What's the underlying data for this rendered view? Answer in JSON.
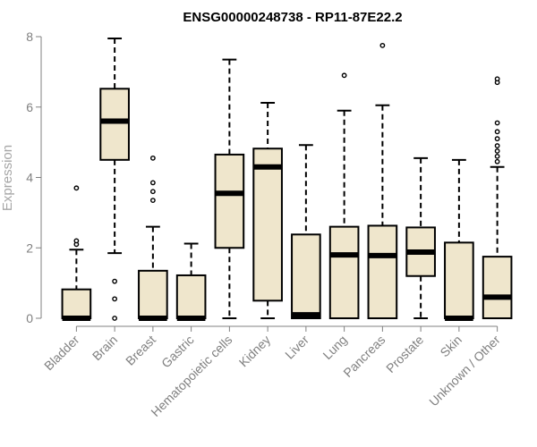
{
  "chart_data": {
    "type": "boxplot",
    "title": "ENSG00000248738 - RP11-87E22.2",
    "xlabel": "",
    "ylabel": "Expression",
    "ylim": [
      0,
      8
    ],
    "yticks": [
      0,
      2,
      4,
      6,
      8
    ],
    "grid": false,
    "legend": "none",
    "box_fill": "#efe6cc",
    "box_stroke": "#000000",
    "axis_color": "#808080",
    "categories": [
      "Bladder",
      "Brain",
      "Breast",
      "Gastric",
      "Hematopoietic cells",
      "Kidney",
      "Liver",
      "Lung",
      "Pancreas",
      "Prostate",
      "Skin",
      "Unknown / Other"
    ],
    "boxes": [
      {
        "category": "Bladder",
        "min": 0,
        "q1": 0,
        "median": 0,
        "q3": 0.82,
        "max": 1.95,
        "outliers": [
          2.1,
          2.2,
          3.7
        ]
      },
      {
        "category": "Brain",
        "min": 1.85,
        "q1": 4.5,
        "median": 5.6,
        "q3": 6.52,
        "max": 7.95,
        "outliers": [
          0,
          0.55,
          1.05
        ]
      },
      {
        "category": "Breast",
        "min": 0,
        "q1": 0,
        "median": 0,
        "q3": 1.35,
        "max": 2.6,
        "outliers": [
          3.35,
          3.6,
          3.85,
          4.55
        ]
      },
      {
        "category": "Gastric",
        "min": 0,
        "q1": 0,
        "median": 0,
        "q3": 1.22,
        "max": 2.12,
        "outliers": []
      },
      {
        "category": "Hematopoietic cells",
        "min": 0,
        "q1": 2.0,
        "median": 3.55,
        "q3": 4.65,
        "max": 7.35,
        "outliers": []
      },
      {
        "category": "Kidney",
        "min": 0,
        "q1": 0.5,
        "median": 4.3,
        "q3": 4.82,
        "max": 6.12,
        "outliers": []
      },
      {
        "category": "Liver",
        "min": 0,
        "q1": 0,
        "median": 0.1,
        "q3": 2.38,
        "max": 4.92,
        "outliers": []
      },
      {
        "category": "Lung",
        "min": 0,
        "q1": 0,
        "median": 1.8,
        "q3": 2.6,
        "max": 5.9,
        "outliers": [
          6.9
        ]
      },
      {
        "category": "Pancreas",
        "min": 0,
        "q1": 0,
        "median": 1.78,
        "q3": 2.63,
        "max": 6.05,
        "outliers": [
          7.75
        ]
      },
      {
        "category": "Prostate",
        "min": 0,
        "q1": 1.2,
        "median": 1.88,
        "q3": 2.58,
        "max": 4.55,
        "outliers": []
      },
      {
        "category": "Skin",
        "min": 0,
        "q1": 0,
        "median": 0,
        "q3": 2.15,
        "max": 4.5,
        "outliers": []
      },
      {
        "category": "Unknown / Other",
        "min": 0,
        "q1": 0,
        "median": 0.6,
        "q3": 1.75,
        "max": 4.3,
        "outliers": [
          4.45,
          4.6,
          4.75,
          4.9,
          5.1,
          5.3,
          5.55,
          6.7,
          6.8
        ]
      }
    ]
  }
}
